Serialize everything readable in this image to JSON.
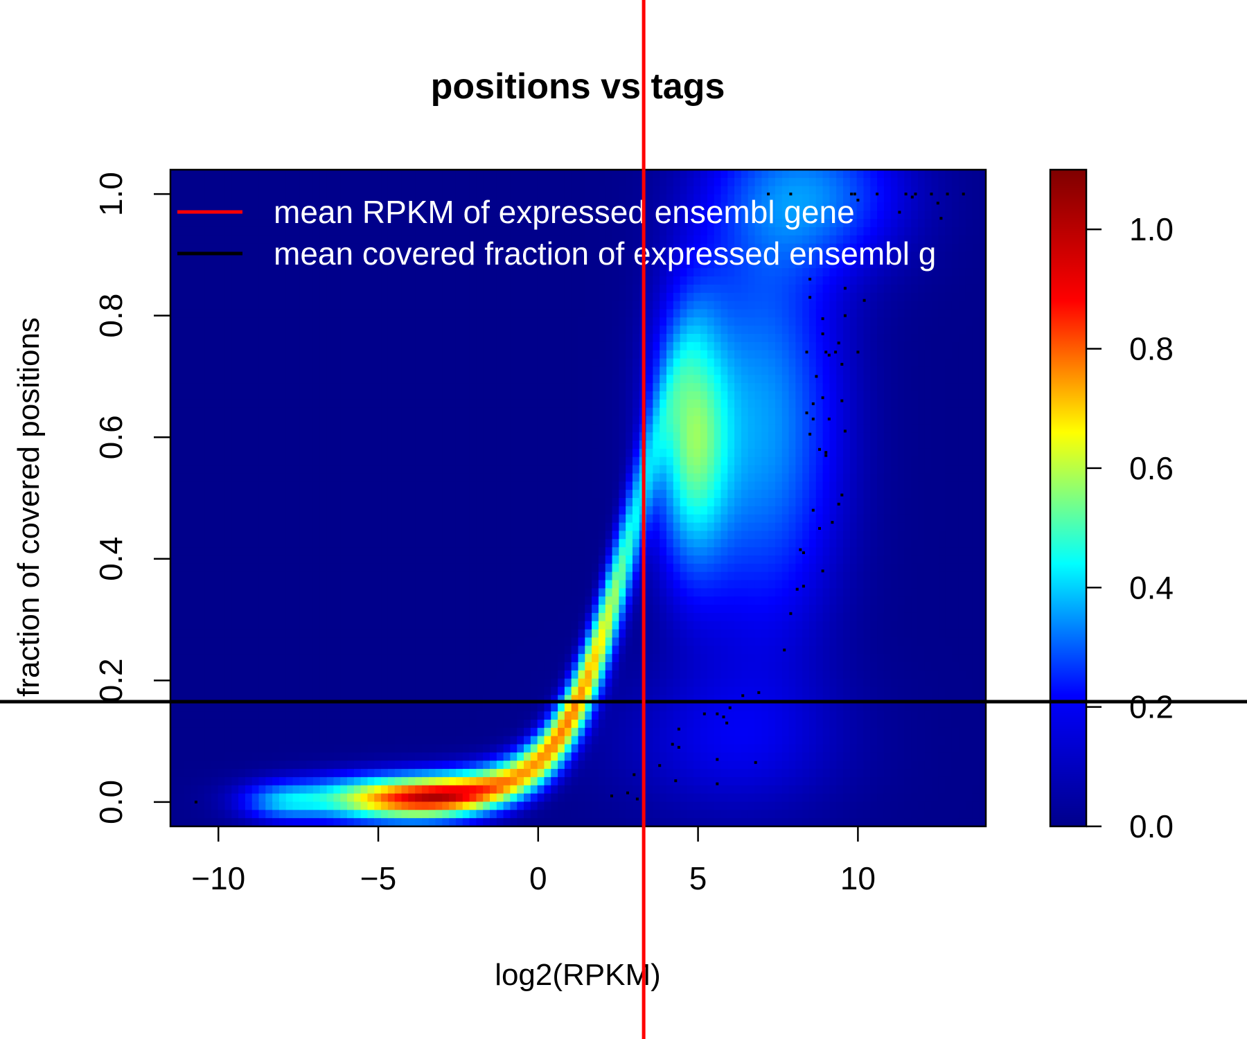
{
  "chart_data": {
    "type": "heatmap",
    "title": "positions vs tags",
    "xlabel": "log2(RPKM)",
    "ylabel": "fraction of covered positions",
    "xlim": [
      -11.5,
      14
    ],
    "ylim": [
      -0.04,
      1.04
    ],
    "x_ticks": [
      -10,
      -5,
      0,
      5,
      10
    ],
    "x_tick_labels": [
      "−10",
      "−5",
      "0",
      "5",
      "10"
    ],
    "y_ticks": [
      0.0,
      0.2,
      0.4,
      0.6,
      0.8,
      1.0
    ],
    "y_tick_labels": [
      "0.0",
      "0.2",
      "0.4",
      "0.6",
      "0.8",
      "1.0"
    ],
    "colorbar": {
      "range": [
        0.0,
        1.1
      ],
      "ticks": [
        0.0,
        0.2,
        0.4,
        0.6,
        0.8,
        1.0
      ],
      "tick_labels": [
        "0.0",
        "0.2",
        "0.4",
        "0.6",
        "0.8",
        "1.0"
      ],
      "colors": [
        "#00008B",
        "#0000FF",
        "#00FFFF",
        "#FFFF00",
        "#FF0000",
        "#7F0000"
      ]
    },
    "legend": {
      "position": "top-left",
      "entries": [
        {
          "label": "mean RPKM of expressed ensembl gene",
          "color": "#FF0000"
        },
        {
          "label": "mean covered fraction of expressed ensembl g",
          "color": "#000000"
        }
      ]
    },
    "reference_lines": {
      "vertical_x": 3.3,
      "horizontal_y": 0.165
    },
    "outlier_points": [
      [
        -10.7,
        0.0
      ],
      [
        2.3,
        0.01
      ],
      [
        2.8,
        0.015
      ],
      [
        3.0,
        0.045
      ],
      [
        3.1,
        0.005
      ],
      [
        3.8,
        0.06
      ],
      [
        4.2,
        0.095
      ],
      [
        4.3,
        0.035
      ],
      [
        4.4,
        0.12
      ],
      [
        4.4,
        0.09
      ],
      [
        5.2,
        0.145
      ],
      [
        5.6,
        0.145
      ],
      [
        5.6,
        0.07
      ],
      [
        5.6,
        0.03
      ],
      [
        5.8,
        0.14
      ],
      [
        5.9,
        0.13
      ],
      [
        6.0,
        0.155
      ],
      [
        6.4,
        0.175
      ],
      [
        6.8,
        0.065
      ],
      [
        6.9,
        0.18
      ],
      [
        7.7,
        0.25
      ],
      [
        7.9,
        0.31
      ],
      [
        8.1,
        0.35
      ],
      [
        8.2,
        0.415
      ],
      [
        8.3,
        0.41
      ],
      [
        8.3,
        0.355
      ],
      [
        8.4,
        0.64
      ],
      [
        8.4,
        0.74
      ],
      [
        8.5,
        0.86
      ],
      [
        8.5,
        0.83
      ],
      [
        8.5,
        0.605
      ],
      [
        8.6,
        0.655
      ],
      [
        8.6,
        0.63
      ],
      [
        8.6,
        0.48
      ],
      [
        8.7,
        0.7
      ],
      [
        8.8,
        0.45
      ],
      [
        8.8,
        0.58
      ],
      [
        8.9,
        0.77
      ],
      [
        8.9,
        0.795
      ],
      [
        8.9,
        0.665
      ],
      [
        8.9,
        0.38
      ],
      [
        9.0,
        0.57
      ],
      [
        9.0,
        0.575
      ],
      [
        9.0,
        0.74
      ],
      [
        9.1,
        0.735
      ],
      [
        9.1,
        0.63
      ],
      [
        9.2,
        0.46
      ],
      [
        9.3,
        0.74
      ],
      [
        9.4,
        0.49
      ],
      [
        9.4,
        0.755
      ],
      [
        9.5,
        0.505
      ],
      [
        9.5,
        0.72
      ],
      [
        9.5,
        0.66
      ],
      [
        9.6,
        0.8
      ],
      [
        9.6,
        0.61
      ],
      [
        9.6,
        0.845
      ],
      [
        9.9,
        1.0
      ],
      [
        10.0,
        0.74
      ],
      [
        10.2,
        0.825
      ],
      [
        7.2,
        1.0
      ],
      [
        7.9,
        1.0
      ],
      [
        9.8,
        1.0
      ],
      [
        10.0,
        0.99
      ],
      [
        10.6,
        1.0
      ],
      [
        11.3,
        0.97
      ],
      [
        11.5,
        1.0
      ],
      [
        11.7,
        0.995
      ],
      [
        11.8,
        1.0
      ],
      [
        12.3,
        1.0
      ],
      [
        12.5,
        0.985
      ],
      [
        12.6,
        0.96
      ],
      [
        12.8,
        1.0
      ],
      [
        13.3,
        1.0
      ]
    ]
  }
}
